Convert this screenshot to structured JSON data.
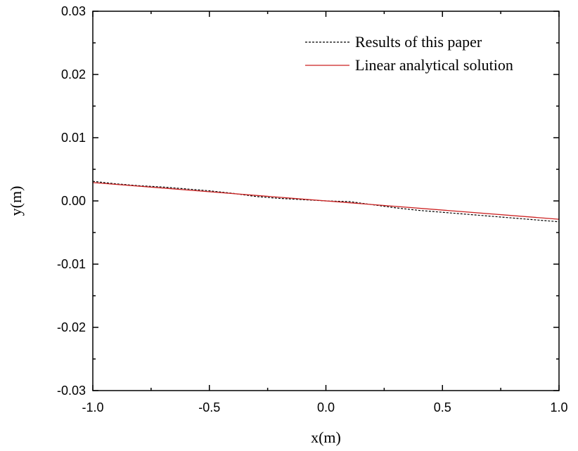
{
  "chart_data": {
    "type": "line",
    "xlabel": "x(m)",
    "ylabel": "y(m)",
    "xlim": [
      -1.0,
      1.0
    ],
    "ylim": [
      -0.03,
      0.03
    ],
    "xticks": [
      -1.0,
      -0.5,
      0.0,
      0.5,
      1.0
    ],
    "xtick_labels": [
      "-1.0",
      "-0.5",
      "0.0",
      "0.5",
      "1.0"
    ],
    "yticks": [
      -0.03,
      -0.02,
      -0.01,
      0.0,
      0.01,
      0.02,
      0.03
    ],
    "ytick_labels": [
      "-0.03",
      "-0.02",
      "-0.01",
      "0.00",
      "0.01",
      "0.02",
      "0.03"
    ],
    "grid": false,
    "legend_position": "top-right",
    "series": [
      {
        "name": "Results of this paper",
        "style": "dashed",
        "color": "#000000",
        "x": [
          -1.0,
          -0.9,
          -0.8,
          -0.7,
          -0.6,
          -0.5,
          -0.4,
          -0.3,
          -0.2,
          -0.1,
          0.0,
          0.1,
          0.2,
          0.3,
          0.4,
          0.5,
          0.6,
          0.7,
          0.8,
          0.9,
          1.0
        ],
        "y": [
          0.0031,
          0.0027,
          0.0024,
          0.0022,
          0.0019,
          0.0016,
          0.0012,
          0.0007,
          0.0004,
          0.0002,
          0.0,
          -0.0001,
          -0.0006,
          -0.0011,
          -0.0015,
          -0.0018,
          -0.0021,
          -0.0024,
          -0.0027,
          -0.003,
          -0.0033
        ]
      },
      {
        "name": "Linear analytical solution",
        "style": "solid",
        "color": "#cc2222",
        "x": [
          -1.0,
          1.0
        ],
        "y": [
          0.0029,
          -0.0029
        ]
      }
    ]
  }
}
